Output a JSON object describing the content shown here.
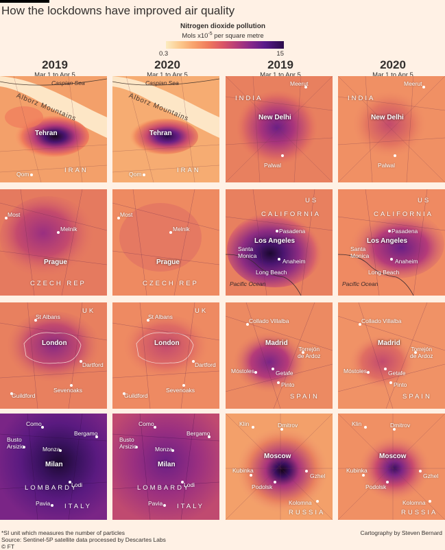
{
  "title": "How the lockdowns have improved air quality",
  "legend": {
    "title": "Nitrogen dioxide pollution",
    "units_prefix": "Mols x10",
    "units_exp": "-5",
    "units_suffix": " per square metre",
    "min": "0.3",
    "max": "15"
  },
  "columns": [
    {
      "year": "2019",
      "range": "Mar 1 to Apr 5"
    },
    {
      "year": "2020",
      "range": "Mar 1 to Apr 5"
    },
    {
      "year": "2019",
      "range": "Mar 1 to Apr 5"
    },
    {
      "year": "2020",
      "range": "Mar 1 to Apr 5"
    }
  ],
  "maps": {
    "tehran": {
      "caspian": "Caspian Sea",
      "mountains": "Alborz Mountains",
      "city": "Tehran",
      "qom": "Qom",
      "country": "IRAN"
    },
    "delhi": {
      "country": "INDIA",
      "city": "New Delhi",
      "meerut": "Meerut",
      "palwal": "Palwal"
    },
    "prague": {
      "most": "Most",
      "melnik": "Melnik",
      "city": "Prague",
      "country": "CZECH REP"
    },
    "la": {
      "us": "US",
      "state": "CALIFORNIA",
      "pasadena": "Pasadena",
      "city": "Los Angeles",
      "santa_monica": "Santa\nMonica",
      "anaheim": "Anaheim",
      "long_beach": "Long Beach",
      "ocean": "Pacific Ocean"
    },
    "london": {
      "uk": "UK",
      "st_albans": "St Albans",
      "city": "London",
      "dartford": "Dartford",
      "guildford": "Guildford",
      "sevenoaks": "Sevenoaks"
    },
    "madrid": {
      "collado": "Collado Villalba",
      "city": "Madrid",
      "torrejon": "Torrejón\nde Ardoz",
      "mostoles": "Móstoles",
      "getafe": "Getafe",
      "pinto": "Pinto",
      "country": "SPAIN"
    },
    "milan": {
      "como": "Como",
      "bergamo": "Bergamo",
      "busto": "Busto\nArsizio",
      "monza": "Monza",
      "city": "Milan",
      "lodi": "Lodi",
      "region": "LOMBARDY",
      "pavia": "Pavia",
      "country": "ITALY"
    },
    "moscow": {
      "klin": "Klin",
      "dmitrov": "Dmitrov",
      "city": "Moscow",
      "kubinka": "Kubinka",
      "gzhel": "Gzhel",
      "podolsk": "Podolsk",
      "kolomna": "Kolomna",
      "country": "RUSSIA"
    }
  },
  "footnote": {
    "line1": "*SI unit which measures the number of particles",
    "line2": "Source: Sentinel-5P satellite data processed by Descartes Labs",
    "line3": "© FT"
  },
  "credit": "Cartography by Steven Bernard"
}
